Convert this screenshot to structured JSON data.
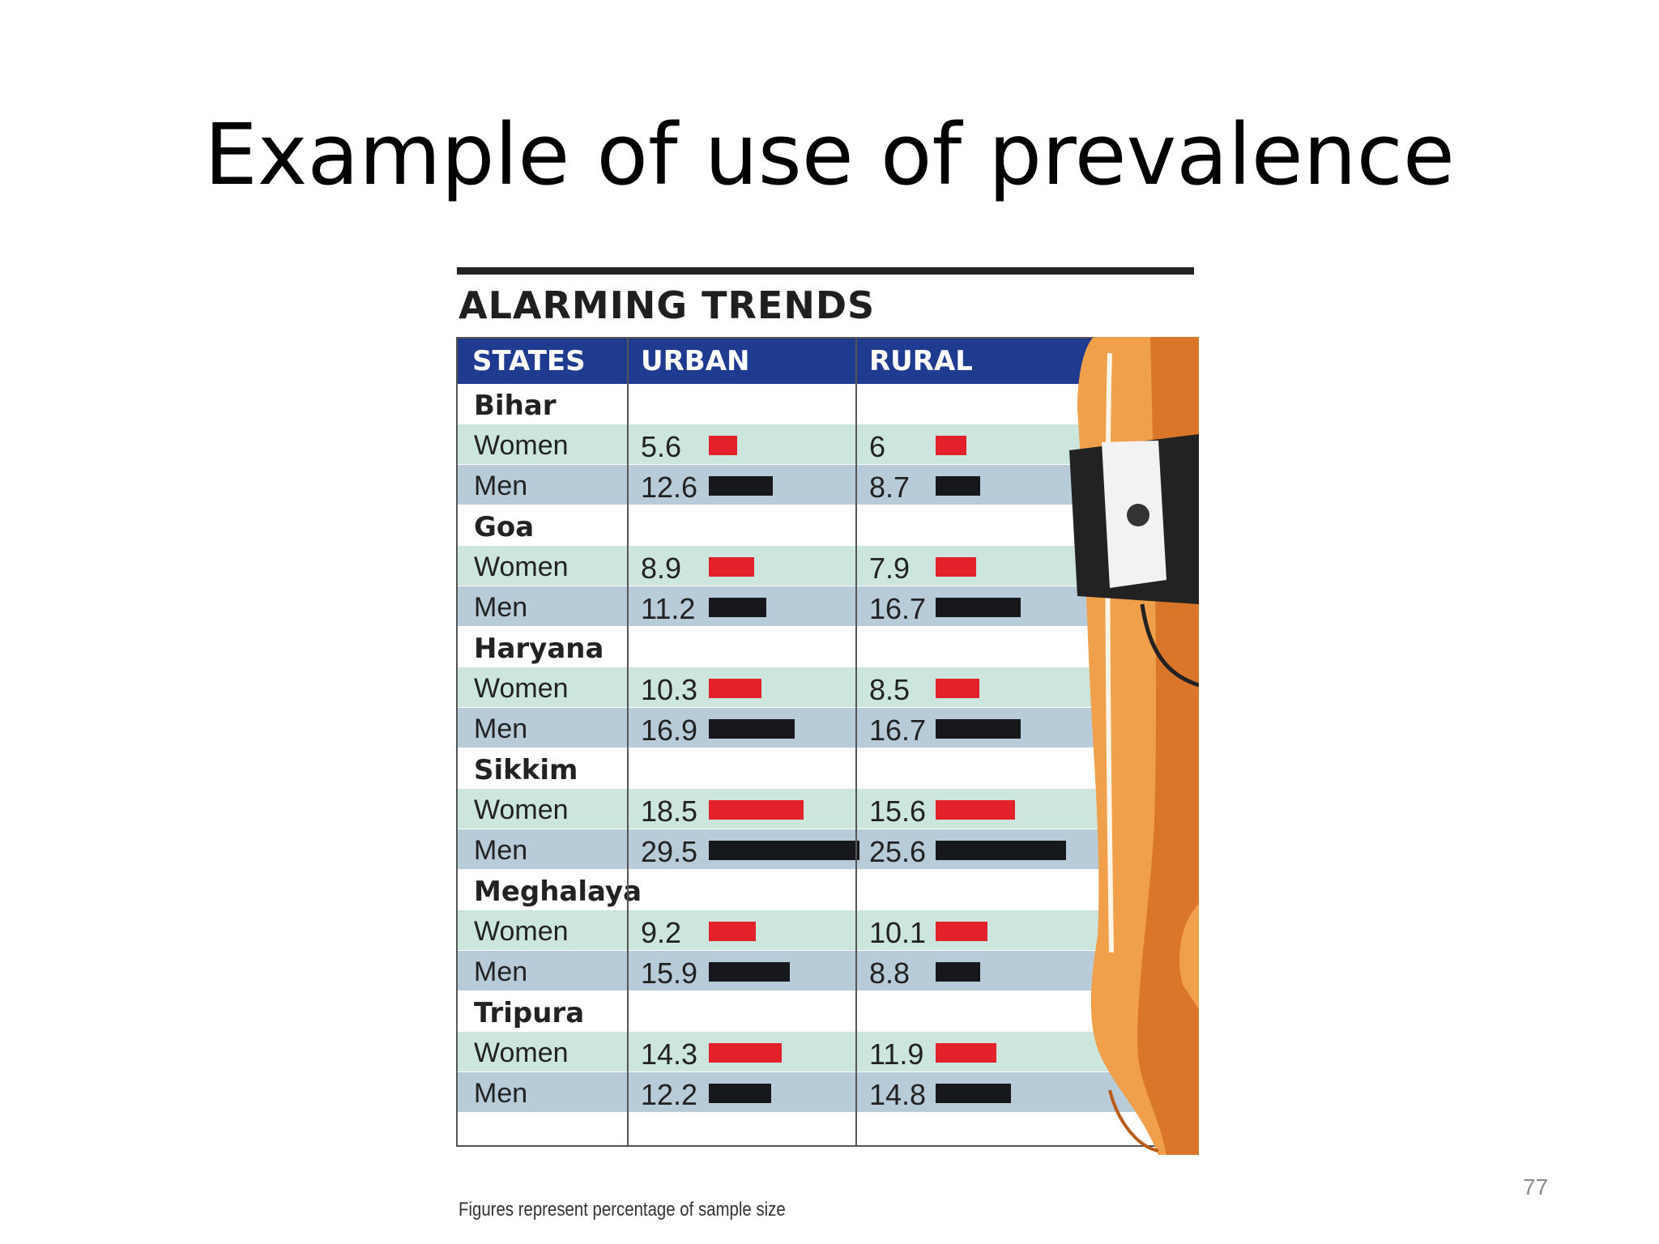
{
  "slide": {
    "title": "Example of use of prevalence",
    "page_number": "77"
  },
  "graphic": {
    "headline": "ALARMING TRENDS",
    "footnote": "Figures represent percentage of sample size"
  },
  "chart_data": {
    "type": "table",
    "title": "ALARMING TRENDS",
    "columns": [
      "STATES",
      "URBAN",
      "RURAL"
    ],
    "groups": [
      {
        "state": "Bihar",
        "rows": [
          {
            "label": "Women",
            "urban": 5.6,
            "rural": 6,
            "urban_text": "5.6",
            "rural_text": "6"
          },
          {
            "label": "Men",
            "urban": 12.6,
            "rural": 8.7,
            "urban_text": "12.6",
            "rural_text": "8.7"
          }
        ]
      },
      {
        "state": "Goa",
        "rows": [
          {
            "label": "Women",
            "urban": 8.9,
            "rural": 7.9,
            "urban_text": "8.9",
            "rural_text": "7.9"
          },
          {
            "label": "Men",
            "urban": 11.2,
            "rural": 16.7,
            "urban_text": "11.2",
            "rural_text": "16.7"
          }
        ]
      },
      {
        "state": "Haryana",
        "rows": [
          {
            "label": "Women",
            "urban": 10.3,
            "rural": 8.5,
            "urban_text": "10.3",
            "rural_text": "8.5"
          },
          {
            "label": "Men",
            "urban": 16.9,
            "rural": 16.7,
            "urban_text": "16.9",
            "rural_text": "16.7"
          }
        ]
      },
      {
        "state": "Sikkim",
        "rows": [
          {
            "label": "Women",
            "urban": 18.5,
            "rural": 15.6,
            "urban_text": "18.5",
            "rural_text": "15.6"
          },
          {
            "label": "Men",
            "urban": 29.5,
            "rural": 25.6,
            "urban_text": "29.5",
            "rural_text": "25.6"
          }
        ]
      },
      {
        "state": "Meghalaya",
        "rows": [
          {
            "label": "Women",
            "urban": 9.2,
            "rural": 10.1,
            "urban_text": "9.2",
            "rural_text": "10.1"
          },
          {
            "label": "Men",
            "urban": 15.9,
            "rural": 8.8,
            "urban_text": "15.9",
            "rural_text": "8.8"
          }
        ]
      },
      {
        "state": "Tripura",
        "rows": [
          {
            "label": "Women",
            "urban": 14.3,
            "rural": 11.9,
            "urban_text": "14.3",
            "rural_text": "11.9"
          },
          {
            "label": "Men",
            "urban": 12.2,
            "rural": 14.8,
            "urban_text": "12.2",
            "rural_text": "14.8"
          }
        ]
      }
    ],
    "bar_colors": {
      "Women": "#e3212b",
      "Men": "#16181c"
    },
    "header_color": "#1e3b8f",
    "women_row_color": "#cde6dd",
    "men_row_color": "#b7cbd8"
  }
}
